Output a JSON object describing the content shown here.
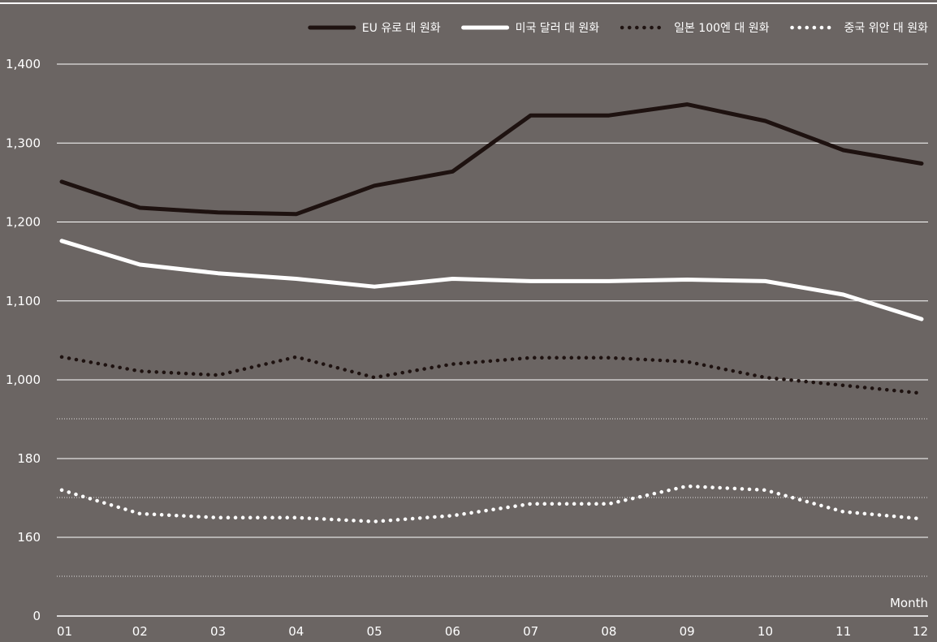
{
  "chart_data": {
    "type": "line",
    "xlabel": "Month",
    "categories": [
      "01",
      "02",
      "03",
      "04",
      "05",
      "06",
      "07",
      "08",
      "09",
      "10",
      "11",
      "12"
    ],
    "y_axis": {
      "scale": "broken",
      "tick_labels": [
        "0",
        "160",
        "180",
        "1,000",
        "1,100",
        "1,200",
        "1,300",
        "1,400"
      ],
      "upper_segment_range": [
        1000,
        1400
      ],
      "lower_segment_range": [
        150,
        190
      ]
    },
    "grid": true,
    "legend_position": "top-right",
    "series": [
      {
        "name": "EU 유로 대 원화",
        "color": "#1e1210",
        "style": "solid",
        "values": [
          1251,
          1218,
          1212,
          1210,
          1246,
          1264,
          1335,
          1335,
          1349,
          1328,
          1291,
          1274
        ]
      },
      {
        "name": "미국 달러 대 원화",
        "color": "#ffffff",
        "style": "solid",
        "values": [
          1176,
          1146,
          1135,
          1128,
          1118,
          1128,
          1125,
          1125,
          1127,
          1125,
          1108,
          1077
        ]
      },
      {
        "name": "일본 100엔 대 원화",
        "color": "#1e1210",
        "style": "dotted",
        "values": [
          1029,
          1011,
          1006,
          1029,
          1003,
          1020,
          1028,
          1028,
          1023,
          1003,
          993,
          983
        ]
      },
      {
        "name": "중국 위안 대 원화",
        "color": "#ffffff",
        "style": "dotted",
        "values": [
          172,
          166,
          165,
          165,
          164,
          165.5,
          168.5,
          168.5,
          173,
          172,
          166.5,
          164.7
        ]
      }
    ]
  }
}
